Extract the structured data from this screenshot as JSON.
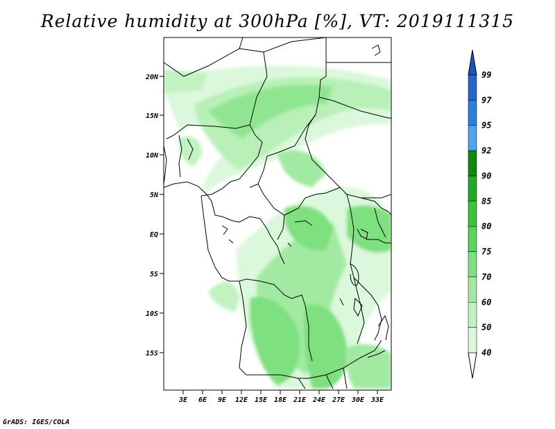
{
  "title": "Relative humidity at 300hPa [%], VT: 2019111315",
  "credit": "GrADS: IGES/COLA",
  "map": {
    "lat_labels": [
      "20N",
      "15N",
      "10N",
      "5N",
      "EQ",
      "5S",
      "10S",
      "15S"
    ],
    "lon_labels": [
      "3E",
      "6E",
      "9E",
      "12E",
      "15E",
      "18E",
      "21E",
      "24E",
      "27E",
      "30E",
      "33E"
    ]
  },
  "colorbar": {
    "levels": [
      "99",
      "97",
      "95",
      "92",
      "90",
      "85",
      "80",
      "75",
      "70",
      "60",
      "50",
      "40"
    ],
    "colors": [
      "#2266cc",
      "#2f7fe0",
      "#4fa3f0",
      "#0b8a0b",
      "#1faa1f",
      "#3cc23c",
      "#5ad45a",
      "#7ee07e",
      "#a2eaa2",
      "#c2f2c2",
      "#dcf8dc",
      "#eefcee"
    ],
    "top_color": "#1a55bb",
    "bottom_color": "#ffffff"
  }
}
